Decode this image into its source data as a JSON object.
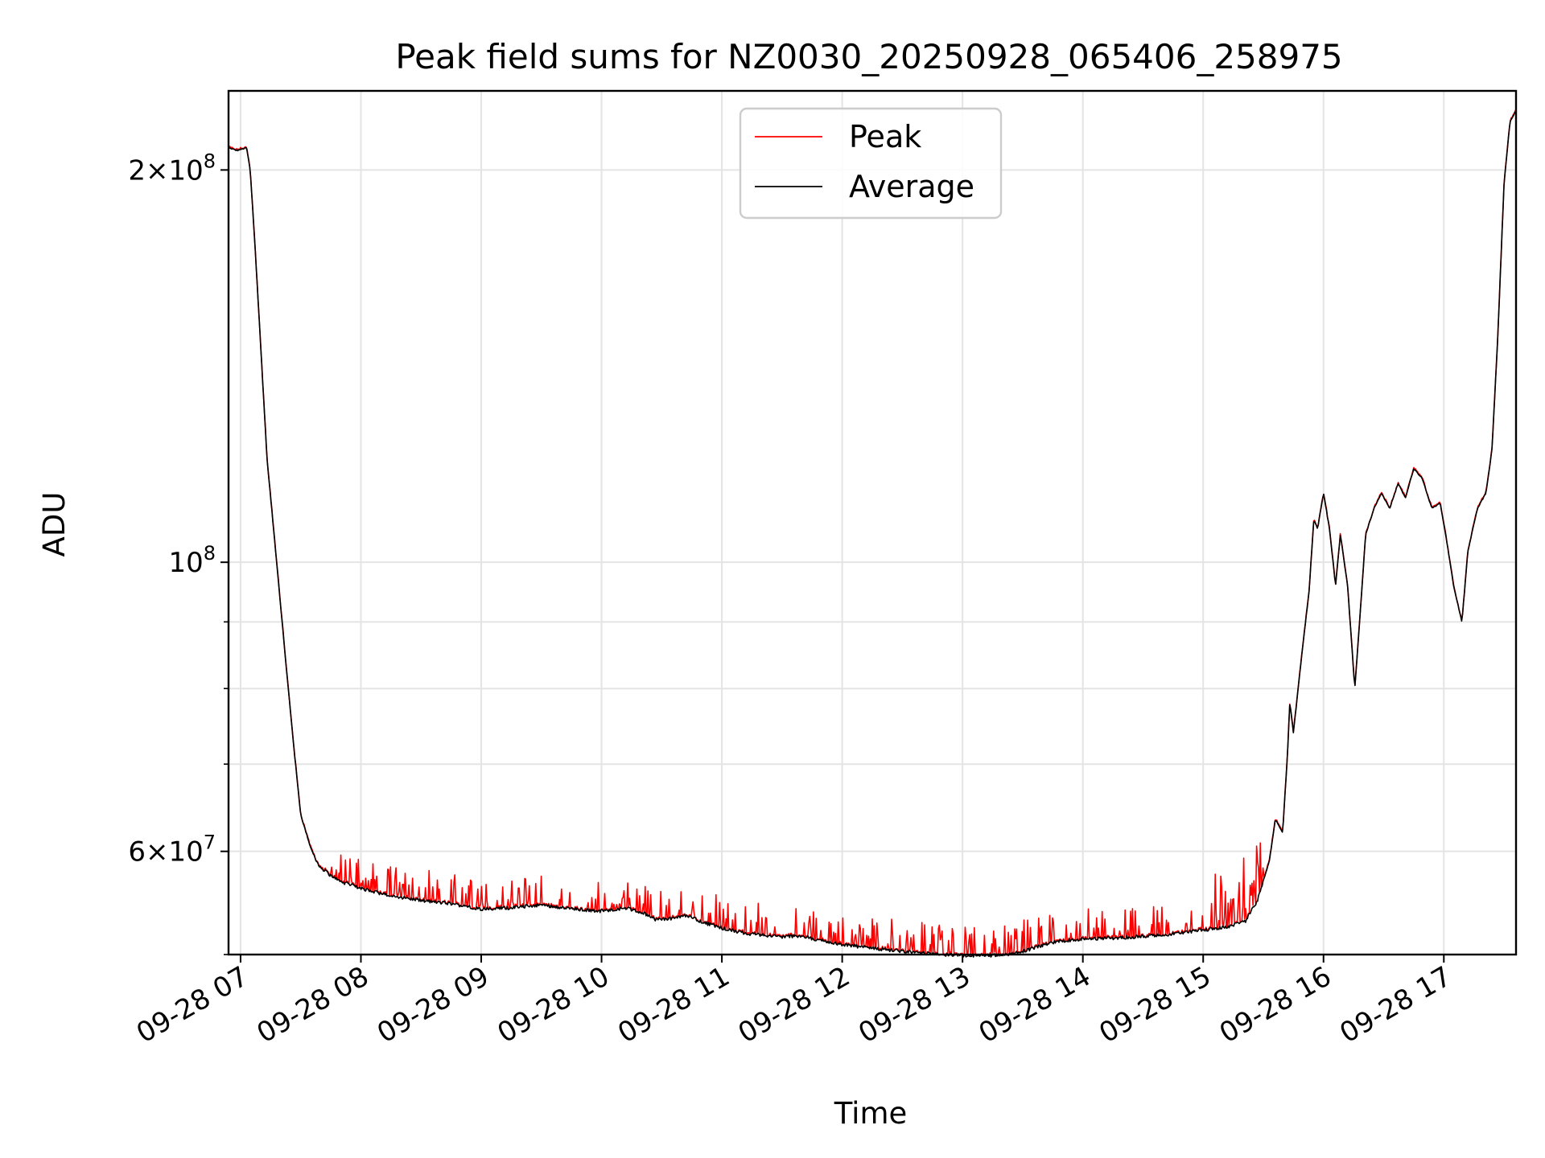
{
  "chart_data": {
    "type": "line",
    "title": "Peak field sums for NZ0030_20250928_065406_258975",
    "xlabel": "Time",
    "ylabel": "ADU",
    "yscale": "log",
    "grid": true,
    "legend_position": "top-center",
    "xlim_hours": [
      6.9,
      17.6
    ],
    "ylim": [
      50000000,
      230000000
    ],
    "x_ticks": [
      {
        "hour": 7,
        "label": "09-28 07"
      },
      {
        "hour": 8,
        "label": "09-28 08"
      },
      {
        "hour": 9,
        "label": "09-28 09"
      },
      {
        "hour": 10,
        "label": "09-28 10"
      },
      {
        "hour": 11,
        "label": "09-28 11"
      },
      {
        "hour": 12,
        "label": "09-28 12"
      },
      {
        "hour": 13,
        "label": "09-28 13"
      },
      {
        "hour": 14,
        "label": "09-28 14"
      },
      {
        "hour": 15,
        "label": "09-28 15"
      },
      {
        "hour": 16,
        "label": "09-28 16"
      },
      {
        "hour": 17,
        "label": "09-28 17"
      }
    ],
    "y_major_ticks": [
      {
        "value": 60000000,
        "base": "6",
        "exp": "7"
      },
      {
        "value": 100000000,
        "base": "",
        "exp": "8"
      },
      {
        "value": 200000000,
        "base": "2",
        "exp": "8"
      }
    ],
    "y_minor_ticks": [
      50000000,
      70000000,
      80000000,
      90000000
    ],
    "series": [
      {
        "name": "Peak",
        "color": "#ff0000"
      },
      {
        "name": "Average",
        "color": "#000000"
      }
    ],
    "average_points": [
      [
        6.9,
        208000000.0
      ],
      [
        6.97,
        207000000.0
      ],
      [
        7.05,
        208000000.0
      ],
      [
        7.08,
        200000000.0
      ],
      [
        7.12,
        175000000.0
      ],
      [
        7.17,
        145000000.0
      ],
      [
        7.22,
        120000000.0
      ],
      [
        7.3,
        100000000.0
      ],
      [
        7.38,
        83000000.0
      ],
      [
        7.45,
        71000000.0
      ],
      [
        7.5,
        64000000.0
      ],
      [
        7.58,
        60500000.0
      ],
      [
        7.65,
        58500000.0
      ],
      [
        7.75,
        57500000.0
      ],
      [
        7.85,
        56800000.0
      ],
      [
        8.0,
        56200000.0
      ],
      [
        8.2,
        55600000.0
      ],
      [
        8.5,
        55000000.0
      ],
      [
        8.75,
        54700000.0
      ],
      [
        9.0,
        54200000.0
      ],
      [
        9.25,
        54300000.0
      ],
      [
        9.5,
        54600000.0
      ],
      [
        9.75,
        54200000.0
      ],
      [
        10.0,
        54000000.0
      ],
      [
        10.2,
        54300000.0
      ],
      [
        10.35,
        53800000.0
      ],
      [
        10.45,
        53200000.0
      ],
      [
        10.6,
        53300000.0
      ],
      [
        10.7,
        53600000.0
      ],
      [
        10.85,
        52900000.0
      ],
      [
        11.0,
        52400000.0
      ],
      [
        11.2,
        51900000.0
      ],
      [
        11.5,
        51600000.0
      ],
      [
        11.65,
        51700000.0
      ],
      [
        11.8,
        51300000.0
      ],
      [
        12.0,
        50900000.0
      ],
      [
        12.3,
        50500000.0
      ],
      [
        12.6,
        50200000.0
      ],
      [
        12.8,
        50000000.0
      ],
      [
        13.0,
        49900000.0
      ],
      [
        13.2,
        49900000.0
      ],
      [
        13.4,
        50000000.0
      ],
      [
        13.6,
        50600000.0
      ],
      [
        13.8,
        51200000.0
      ],
      [
        14.0,
        51400000.0
      ],
      [
        14.3,
        51500000.0
      ],
      [
        14.6,
        51700000.0
      ],
      [
        14.85,
        52000000.0
      ],
      [
        15.0,
        52200000.0
      ],
      [
        15.2,
        52500000.0
      ],
      [
        15.35,
        53000000.0
      ],
      [
        15.45,
        55000000.0
      ],
      [
        15.55,
        59000000.0
      ],
      [
        15.6,
        63500000.0
      ],
      [
        15.66,
        62000000.0
      ],
      [
        15.7,
        71000000.0
      ],
      [
        15.72,
        78000000.0
      ],
      [
        15.75,
        74000000.0
      ],
      [
        15.82,
        85000000.0
      ],
      [
        15.88,
        95000000.0
      ],
      [
        15.92,
        108000000.0
      ],
      [
        15.95,
        106000000.0
      ],
      [
        16.0,
        113000000.0
      ],
      [
        16.05,
        106000000.0
      ],
      [
        16.1,
        96000000.0
      ],
      [
        16.14,
        105000000.0
      ],
      [
        16.2,
        96000000.0
      ],
      [
        16.26,
        80000000.0
      ],
      [
        16.3,
        90000000.0
      ],
      [
        16.35,
        105000000.0
      ],
      [
        16.42,
        110000000.0
      ],
      [
        16.48,
        113000000.0
      ],
      [
        16.55,
        110000000.0
      ],
      [
        16.62,
        115000000.0
      ],
      [
        16.68,
        112000000.0
      ],
      [
        16.75,
        118000000.0
      ],
      [
        16.82,
        116000000.0
      ],
      [
        16.9,
        110000000.0
      ],
      [
        16.97,
        111000000.0
      ],
      [
        17.03,
        103000000.0
      ],
      [
        17.08,
        96000000.0
      ],
      [
        17.15,
        90000000.0
      ],
      [
        17.2,
        102000000.0
      ],
      [
        17.28,
        110000000.0
      ],
      [
        17.35,
        113000000.0
      ],
      [
        17.4,
        122000000.0
      ],
      [
        17.45,
        150000000.0
      ],
      [
        17.5,
        195000000.0
      ],
      [
        17.55,
        218000000.0
      ],
      [
        17.6,
        222000000.0
      ]
    ]
  }
}
